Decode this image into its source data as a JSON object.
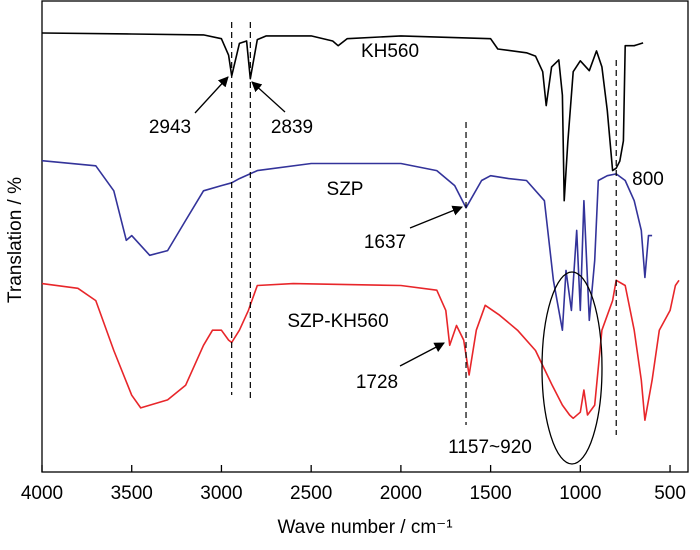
{
  "chart_data": {
    "type": "line",
    "x_label": "Wave number / cm⁻¹",
    "y_label": "Translation / %",
    "xlim": [
      4000,
      400
    ],
    "ylim": [
      0,
      100
    ],
    "xticks": [
      4000,
      3500,
      3000,
      2500,
      2000,
      1500,
      1000,
      500
    ],
    "series": [
      {
        "name": "KH560",
        "color": "#000000",
        "x": [
          4000,
          3500,
          3100,
          3000,
          2960,
          2943,
          2900,
          2860,
          2839,
          2800,
          2750,
          2500,
          2380,
          2350,
          2300,
          2000,
          1500,
          1460,
          1300,
          1250,
          1210,
          1190,
          1160,
          1120,
          1100,
          1090,
          1070,
          1040,
          1000,
          950,
          910,
          880,
          850,
          820,
          800,
          780,
          760,
          750,
          700,
          650
        ],
        "values": [
          93.2,
          93.0,
          92.8,
          92.0,
          88.5,
          84.1,
          91.0,
          91.5,
          83.5,
          91.8,
          92.6,
          92.6,
          91.5,
          90.5,
          92.0,
          92.6,
          92.0,
          89.8,
          89.0,
          88.3,
          85.0,
          77.8,
          86.0,
          87.5,
          80.0,
          57.6,
          70.0,
          85.0,
          87.3,
          85.2,
          89.4,
          86.0,
          76.7,
          64.0,
          64.5,
          66.0,
          70.3,
          90.5,
          90.5,
          91.1
        ]
      },
      {
        "name": "SZP",
        "color": "#33339a",
        "x": [
          4000,
          3700,
          3600,
          3530,
          3500,
          3400,
          3300,
          3200,
          3100,
          3000,
          2943,
          2900,
          2800,
          2500,
          2000,
          1800,
          1700,
          1637,
          1550,
          1500,
          1400,
          1300,
          1200,
          1150,
          1100,
          1080,
          1050,
          1020,
          1000,
          980,
          950,
          920,
          900,
          850,
          800,
          750,
          700,
          660,
          640,
          620,
          600
        ],
        "values": [
          66.1,
          65.0,
          59.7,
          49.2,
          50.2,
          46.0,
          47.0,
          53.4,
          59.7,
          60.8,
          61.4,
          62.3,
          64.0,
          65.5,
          65.5,
          64.0,
          60.8,
          56.1,
          61.9,
          62.9,
          62.3,
          61.9,
          57.6,
          40.7,
          30.1,
          42.8,
          34.3,
          51.3,
          34.3,
          57.6,
          32.2,
          44.9,
          61.9,
          62.9,
          63.3,
          61.9,
          57.6,
          51.3,
          41.3,
          50.2,
          50.2
        ]
      },
      {
        "name": "SZP-KH560",
        "color": "#e8262a",
        "x": [
          4000,
          3800,
          3700,
          3600,
          3500,
          3450,
          3300,
          3200,
          3100,
          3050,
          3000,
          2960,
          2943,
          2900,
          2850,
          2800,
          2600,
          2000,
          1800,
          1750,
          1728,
          1690,
          1650,
          1620,
          1580,
          1530,
          1450,
          1350,
          1250,
          1157,
          1100,
          1060,
          1040,
          1000,
          980,
          960,
          920,
          880,
          820,
          800,
          750,
          700,
          660,
          640,
          600,
          560,
          500,
          470,
          450
        ],
        "values": [
          40.0,
          39.0,
          36.4,
          25.8,
          16.3,
          13.6,
          15.3,
          18.4,
          26.9,
          30.1,
          30.1,
          28.0,
          27.5,
          30.1,
          34.3,
          39.6,
          40.0,
          39.6,
          38.6,
          34.3,
          26.9,
          31.1,
          28.0,
          20.6,
          30.1,
          35.4,
          33.3,
          30.1,
          25.8,
          18.4,
          14.2,
          12.1,
          11.4,
          12.7,
          17.4,
          12.1,
          14.2,
          30.1,
          36.4,
          40.7,
          39.6,
          30.1,
          19.5,
          11.0,
          19.5,
          30.1,
          34.3,
          39.6,
          40.7
        ]
      }
    ],
    "annotations": [
      {
        "value": 2943,
        "label": "2943",
        "line": true
      },
      {
        "value": 2839,
        "label": "2839",
        "line": true
      },
      {
        "value": 1637,
        "label": "1637",
        "line": true
      },
      {
        "value": 800,
        "label": "800",
        "line": true
      },
      {
        "value": 1728,
        "label": "1728",
        "line": false
      },
      {
        "label": "1157~920",
        "line": false
      }
    ]
  }
}
